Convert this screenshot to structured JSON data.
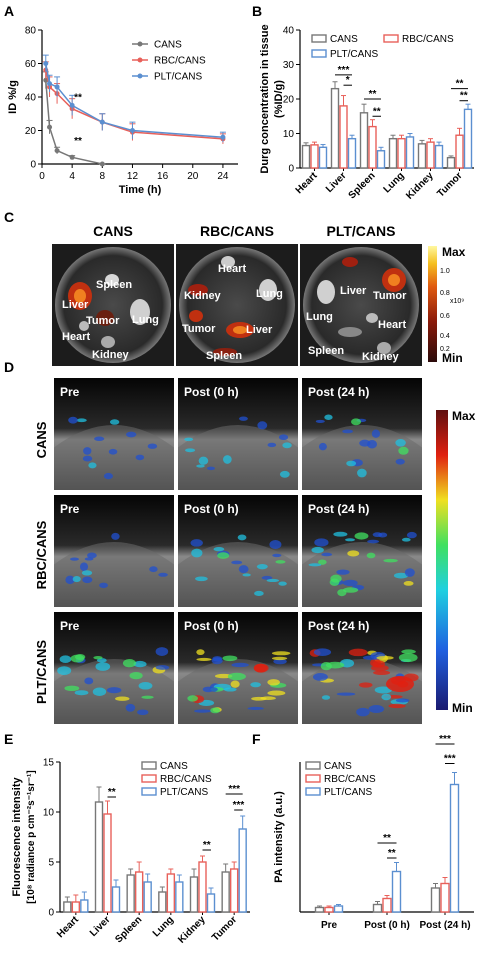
{
  "colors": {
    "CANS": "#777777",
    "RBC/CANS": "#e8605a",
    "PLT/CANS": "#5b8fd0"
  },
  "panels": {
    "A": "A",
    "B": "B",
    "C": "C",
    "D": "D",
    "E": "E",
    "F": "F"
  },
  "chart_data": [
    {
      "id": "A",
      "type": "line",
      "xlabel": "Time (h)",
      "ylabel": "ID %/g",
      "xlim": [
        0,
        26
      ],
      "ylim": [
        0,
        80
      ],
      "xticks": [
        0,
        4,
        8,
        12,
        16,
        20,
        24
      ],
      "yticks": [
        0,
        20,
        40,
        60,
        80
      ],
      "series": [
        {
          "name": "CANS",
          "x": [
            0.5,
            1,
            2,
            4,
            8
          ],
          "y": [
            50,
            22,
            8,
            4,
            0
          ],
          "err": [
            5,
            4,
            2,
            1,
            0
          ]
        },
        {
          "name": "RBC/CANS",
          "x": [
            0.5,
            1,
            2,
            4,
            8,
            12,
            24
          ],
          "y": [
            56,
            46,
            42,
            33,
            25,
            19,
            15
          ],
          "err": [
            5,
            6,
            6,
            6,
            5,
            5,
            3
          ]
        },
        {
          "name": "PLT/CANS",
          "x": [
            0.5,
            1,
            2,
            4,
            8,
            12,
            24
          ],
          "y": [
            60,
            48,
            46,
            35,
            25,
            20,
            16
          ],
          "err": [
            5,
            5,
            6,
            6,
            5,
            5,
            3
          ]
        }
      ],
      "annotations": [
        "**",
        "**"
      ]
    },
    {
      "id": "B",
      "type": "bar",
      "ylabel": "Durg concentration in tissue (%ID/g)",
      "ylim": [
        0,
        40
      ],
      "yticks": [
        0,
        10,
        20,
        30,
        40
      ],
      "categories": [
        "Heart",
        "Liver",
        "Spleen",
        "Lung",
        "Kidney",
        "Tumor"
      ],
      "series": [
        {
          "name": "CANS",
          "values": [
            6.5,
            23,
            16,
            8.5,
            7,
            3
          ],
          "err": [
            0.8,
            2,
            2.5,
            1,
            1,
            0.5
          ]
        },
        {
          "name": "RBC/CANS",
          "values": [
            6.7,
            18,
            12,
            8.5,
            7.5,
            9.5
          ],
          "err": [
            0.8,
            3,
            2,
            1,
            1,
            2
          ]
        },
        {
          "name": "PLT/CANS",
          "values": [
            6,
            8.5,
            5,
            9,
            6.5,
            17
          ],
          "err": [
            0.8,
            1,
            1,
            1,
            1,
            1.5
          ]
        }
      ],
      "annotations": [
        "***",
        "*",
        "**",
        "**",
        "**",
        "**"
      ]
    },
    {
      "id": "E",
      "type": "bar",
      "ylabel": "Fluorescence intensity [10⁸ radiance p cm⁻²s⁻¹sr⁻¹]",
      "ylim": [
        0,
        15
      ],
      "yticks": [
        0,
        5,
        10,
        15
      ],
      "categories": [
        "Heart",
        "Liver",
        "Spleen",
        "Lung",
        "Kidney",
        "Tumor"
      ],
      "series": [
        {
          "name": "CANS",
          "values": [
            1,
            11,
            3.7,
            2,
            3.5,
            4
          ],
          "err": [
            0.5,
            1.5,
            0.6,
            0.5,
            0.8,
            0.8
          ]
        },
        {
          "name": "RBC/CANS",
          "values": [
            1,
            9.8,
            4,
            3.8,
            5,
            4.3
          ],
          "err": [
            0.7,
            1.3,
            1,
            0.5,
            0.6,
            0.7
          ]
        },
        {
          "name": "PLT/CANS",
          "values": [
            1.2,
            2.5,
            3,
            3,
            1.8,
            8.3
          ],
          "err": [
            0.8,
            0.7,
            0.8,
            0.7,
            0.6,
            1.3
          ]
        }
      ],
      "annotations": [
        "**",
        "**",
        "***",
        "***"
      ]
    },
    {
      "id": "F",
      "type": "bar",
      "ylabel": "PA intensity (a.u.)",
      "ylim": [
        0,
        10
      ],
      "categories": [
        "Pre",
        "Post (0 h)",
        "Post (24 h)"
      ],
      "series": [
        {
          "name": "CANS",
          "values": [
            0.3,
            0.5,
            1.6
          ],
          "err": [
            0.1,
            0.2,
            0.3
          ]
        },
        {
          "name": "RBC/CANS",
          "values": [
            0.3,
            0.9,
            1.9
          ],
          "err": [
            0.1,
            0.2,
            0.4
          ]
        },
        {
          "name": "PLT/CANS",
          "values": [
            0.4,
            2.7,
            8.5
          ],
          "err": [
            0.1,
            0.6,
            0.8
          ]
        }
      ],
      "annotations": [
        "**",
        "**",
        "***",
        "***"
      ]
    }
  ],
  "fluor": {
    "titles": [
      "CANS",
      "RBC/CANS",
      "PLT/CANS"
    ],
    "dish1": [
      "Liver",
      "Spleen",
      "Tumor",
      "Lung",
      "Heart",
      "Kidney"
    ],
    "dish2": [
      "Heart",
      "Kidney",
      "Lung",
      "Tumor",
      "Liver",
      "Spleen"
    ],
    "dish3": [
      "Liver",
      "Tumor",
      "Lung",
      "Heart",
      "Spleen",
      "Kidney"
    ],
    "scale_max": "Max",
    "scale_min": "Min",
    "scale_unit": "x10⁹",
    "scale_ticks": [
      "1.0",
      "0.8",
      "0.6",
      "0.4",
      "0.2"
    ]
  },
  "pa": {
    "rows": [
      "CANS",
      "RBC/CANS",
      "PLT/CANS"
    ],
    "cols": [
      "Pre",
      "Post (0 h)",
      "Post (24 h)"
    ],
    "scale_max": "Max",
    "scale_min": "Min"
  }
}
